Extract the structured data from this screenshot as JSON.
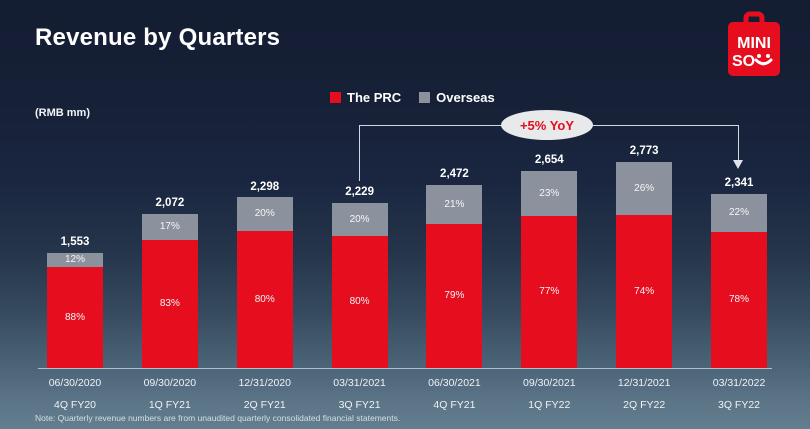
{
  "header": {
    "title": "Revenue by Quarters",
    "unit_label": "(RMB mm)"
  },
  "logo": {
    "line1": "MINI",
    "line2": "SO",
    "bag_color": "#e60e1e",
    "text_color": "#ffffff"
  },
  "legend": [
    {
      "label": "The PRC",
      "color": "#e60e1e"
    },
    {
      "label": "Overseas",
      "color": "#8c929d"
    }
  ],
  "annotation": {
    "text": "+5% YoY",
    "from_quarter": "3Q FY21",
    "to_quarter": "3Q FY22"
  },
  "footnote": "Note: Quarterly revenue numbers are from unaudited quarterly consolidated financial statements.",
  "colors": {
    "prc_red": "#e60e1e",
    "overseas_gray": "#8c929d",
    "background_top": "#141d32",
    "background_bottom": "#627e8f"
  },
  "chart_data": {
    "type": "bar",
    "stacked": true,
    "title": "Revenue by Quarters",
    "unit": "RMB mm",
    "legend_position": "top-center",
    "grid": false,
    "categories_date": [
      "06/30/2020",
      "09/30/2020",
      "12/31/2020",
      "03/31/2021",
      "06/30/2021",
      "09/30/2021",
      "12/31/2021",
      "03/31/2022"
    ],
    "categories_quarter": [
      "4Q FY20",
      "1Q FY21",
      "2Q FY21",
      "3Q FY21",
      "4Q FY21",
      "1Q FY22",
      "2Q FY22",
      "3Q FY22"
    ],
    "totals": [
      1553,
      2072,
      2298,
      2229,
      2472,
      2654,
      2773,
      2341
    ],
    "total_labels": [
      "1,553",
      "2,072",
      "2,298",
      "2,229",
      "2,472",
      "2,654",
      "2,773",
      "2,341"
    ],
    "series": [
      {
        "name": "The PRC",
        "color": "#e60e1e",
        "pct": [
          88,
          83,
          80,
          80,
          79,
          77,
          74,
          78
        ]
      },
      {
        "name": "Overseas",
        "color": "#8c929d",
        "pct": [
          12,
          17,
          20,
          20,
          21,
          23,
          26,
          22
        ]
      }
    ]
  }
}
